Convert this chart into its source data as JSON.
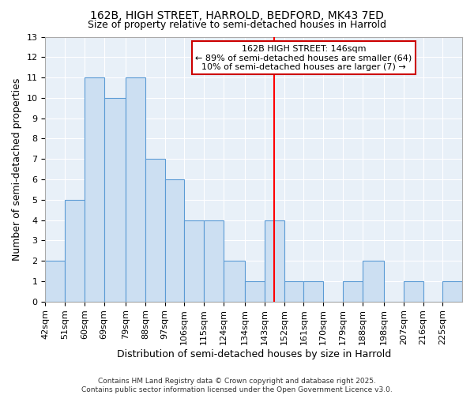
{
  "title": "162B, HIGH STREET, HARROLD, BEDFORD, MK43 7ED",
  "subtitle": "Size of property relative to semi-detached houses in Harrold",
  "xlabel": "Distribution of semi-detached houses by size in Harrold",
  "ylabel": "Number of semi-detached properties",
  "footer_line1": "Contains HM Land Registry data © Crown copyright and database right 2025.",
  "footer_line2": "Contains public sector information licensed under the Open Government Licence v3.0.",
  "bin_edges": [
    42,
    51,
    60,
    69,
    79,
    88,
    97,
    106,
    115,
    124,
    134,
    143,
    152,
    161,
    170,
    179,
    188,
    198,
    207,
    216,
    225,
    234
  ],
  "bar_heights": [
    2,
    5,
    11,
    10,
    11,
    7,
    6,
    4,
    4,
    2,
    1,
    4,
    1,
    1,
    0,
    1,
    2,
    0,
    1,
    0,
    1
  ],
  "bar_color": "#ccdff2",
  "bar_edge_color": "#5b9bd5",
  "fig_background_color": "#ffffff",
  "plot_background_color": "#e8f0f8",
  "grid_color": "#ffffff",
  "red_line_x": 147.5,
  "annotation_title": "162B HIGH STREET: 146sqm",
  "annotation_line1": "← 89% of semi-detached houses are smaller (64)",
  "annotation_line2": "10% of semi-detached houses are larger (7) →",
  "annotation_box_facecolor": "#ffffff",
  "annotation_border_color": "#cc0000",
  "ylim": [
    0,
    13
  ],
  "yticks": [
    0,
    1,
    2,
    3,
    4,
    5,
    6,
    7,
    8,
    9,
    10,
    11,
    12,
    13
  ],
  "tick_labels": [
    "42sqm",
    "51sqm",
    "60sqm",
    "69sqm",
    "79sqm",
    "88sqm",
    "97sqm",
    "106sqm",
    "115sqm",
    "124sqm",
    "134sqm",
    "143sqm",
    "152sqm",
    "161sqm",
    "170sqm",
    "179sqm",
    "188sqm",
    "198sqm",
    "207sqm",
    "216sqm",
    "225sqm"
  ],
  "title_fontsize": 10,
  "subtitle_fontsize": 9,
  "xlabel_fontsize": 9,
  "ylabel_fontsize": 9,
  "tick_fontsize": 8,
  "footer_fontsize": 6.5,
  "annotation_fontsize": 8
}
